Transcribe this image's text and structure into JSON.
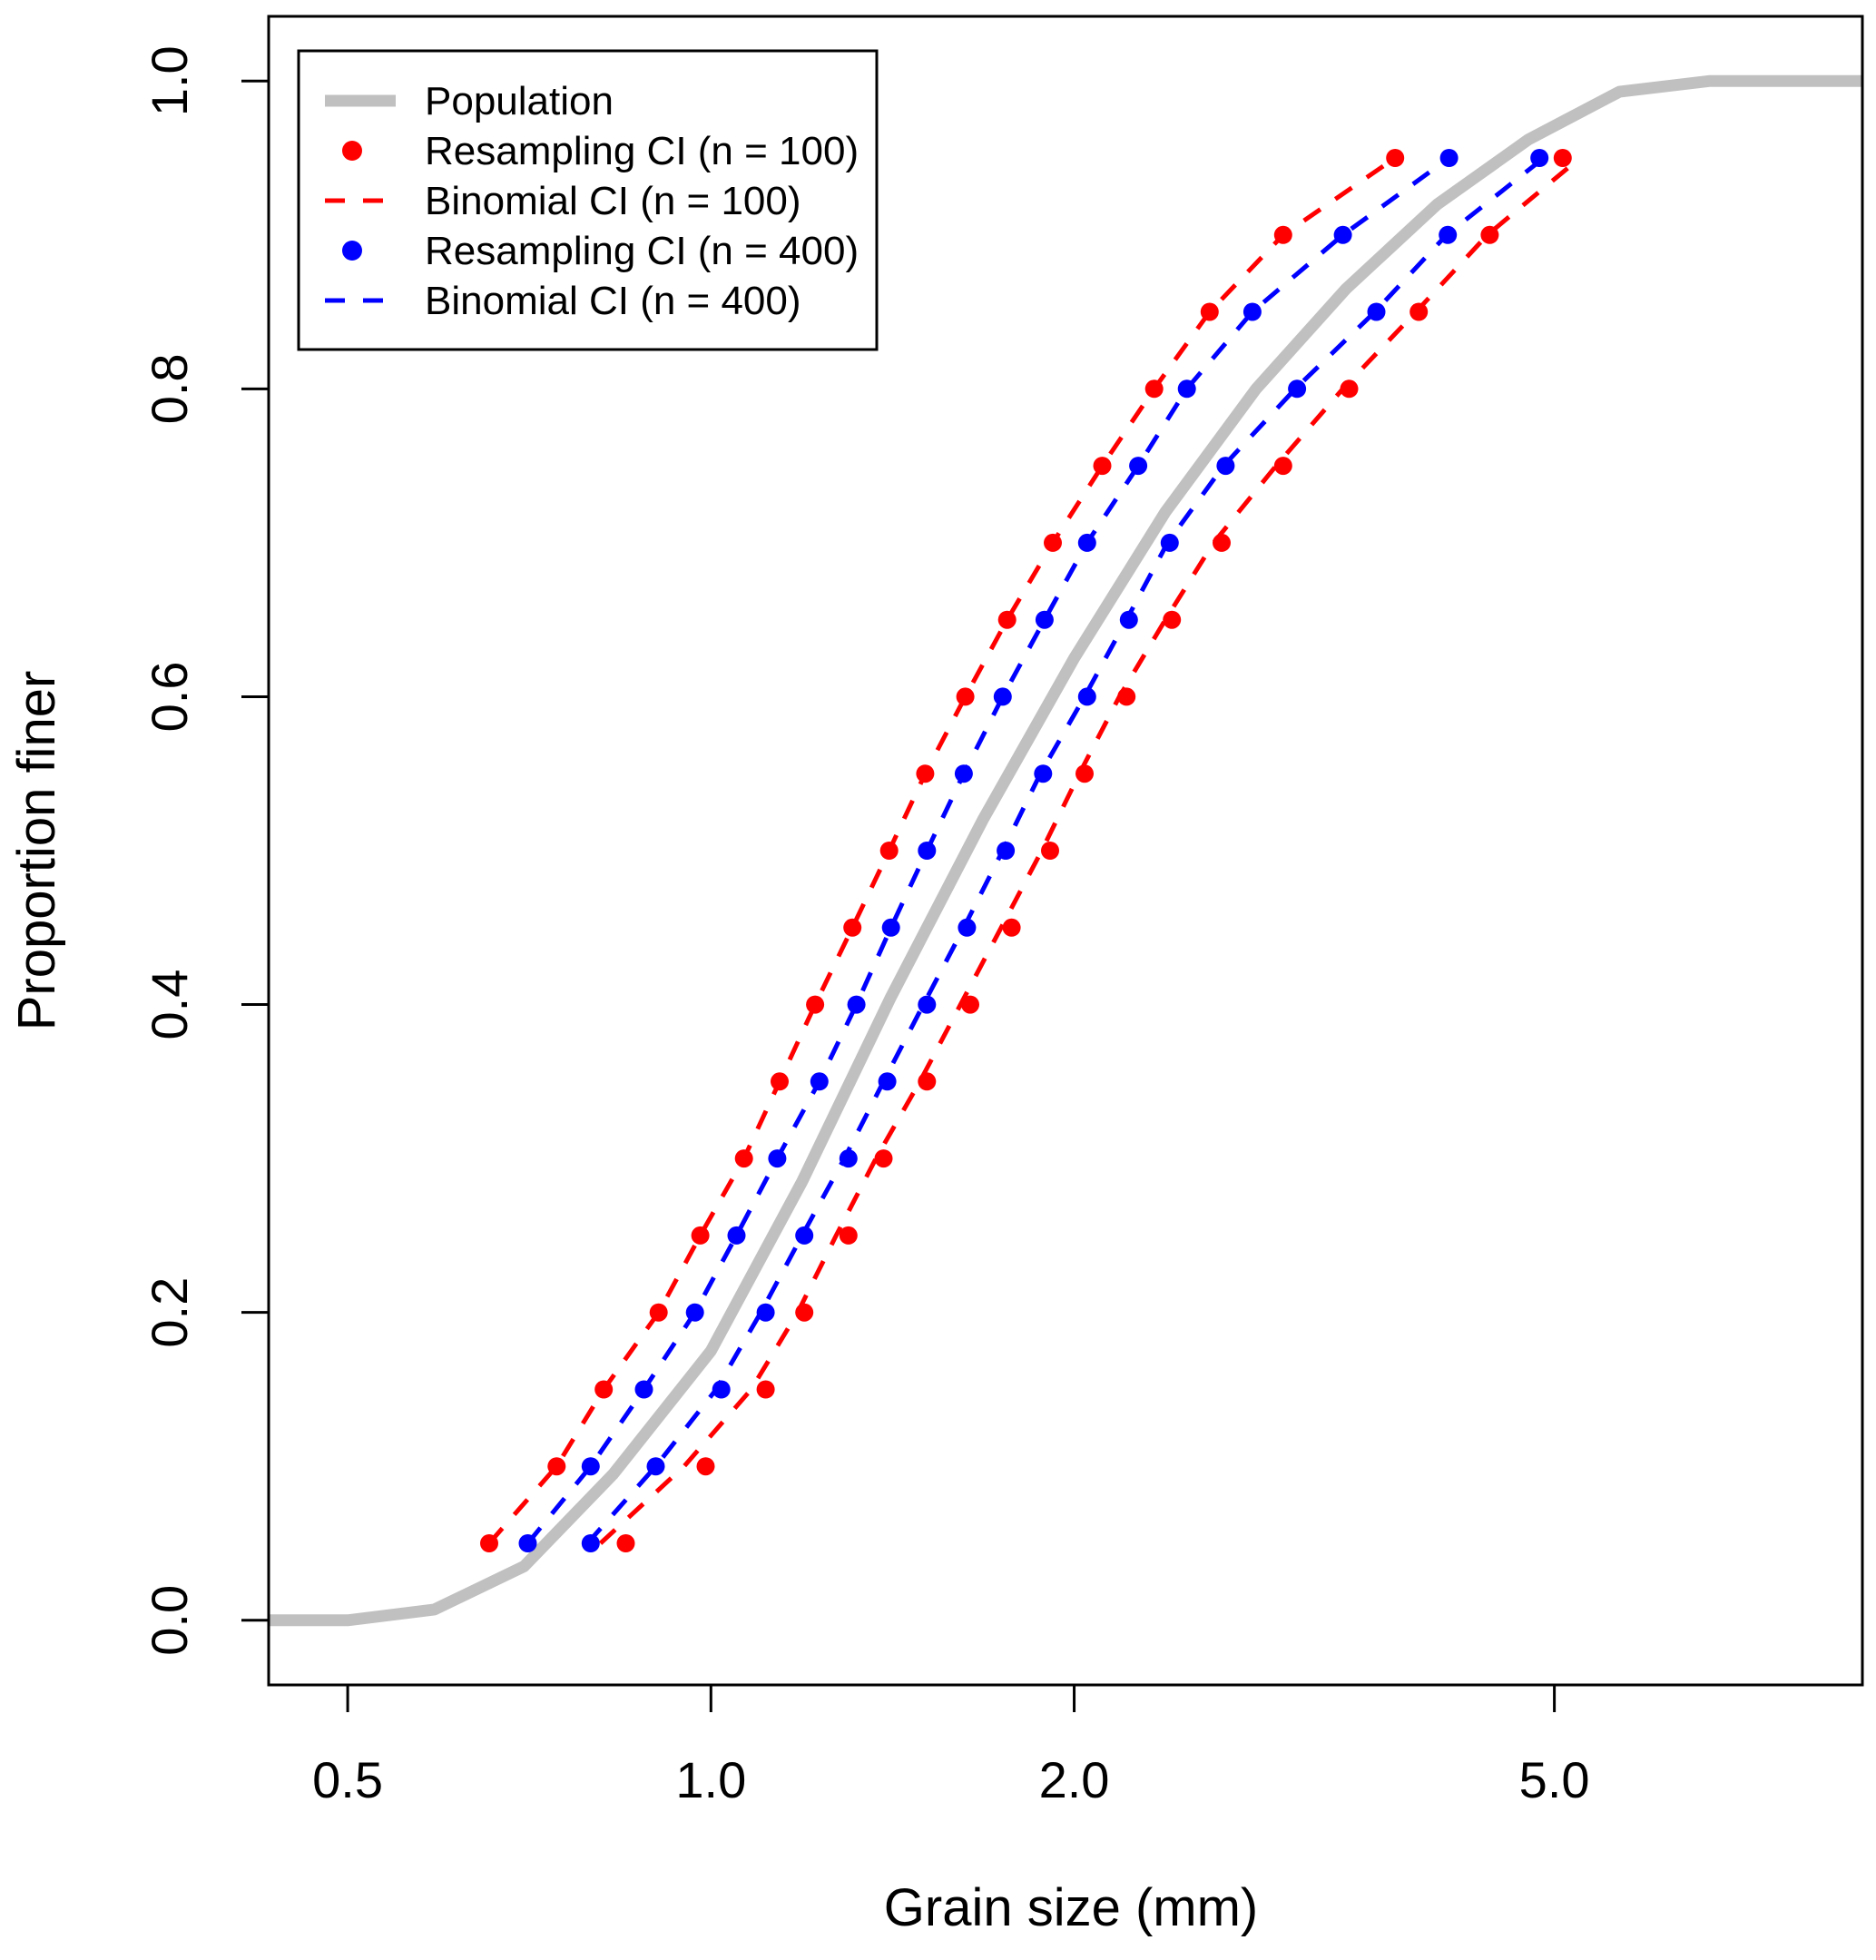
{
  "chart_data": {
    "type": "line",
    "xlabel": "Grain size (mm)",
    "ylabel": "Proportion finer",
    "x_scale": "log",
    "xlim": [
      0.43,
      9.0
    ],
    "ylim": [
      -0.042,
      1.042
    ],
    "x_ticks": [
      0.5,
      1.0,
      2.0,
      5.0
    ],
    "x_tick_labels": [
      "0.5",
      "1.0",
      "2.0",
      "5.0"
    ],
    "y_ticks": [
      0.0,
      0.2,
      0.4,
      0.6,
      0.8,
      1.0
    ],
    "y_tick_labels": [
      "0.0",
      "0.2",
      "0.4",
      "0.6",
      "0.8",
      "1.0"
    ],
    "grid": false,
    "legend_position": "top-left",
    "legend": [
      {
        "label": "Population",
        "style": "thick-line",
        "color": "#c0c0c0"
      },
      {
        "label": "Resampling CI (n = 100)",
        "style": "points",
        "color": "#ff0000"
      },
      {
        "label": "Binomial CI (n = 100)",
        "style": "dashed-line",
        "color": "#ff0000"
      },
      {
        "label": "Resampling CI (n = 400)",
        "style": "points",
        "color": "#0000ff"
      },
      {
        "label": "Binomial CI (n = 400)",
        "style": "dashed-line",
        "color": "#0000ff"
      }
    ],
    "series": [
      {
        "name": "Population",
        "kind": "line",
        "color": "#c0c0c0",
        "x": [
          0.43,
          0.5,
          0.59,
          0.7,
          0.83,
          1.0,
          1.19,
          1.41,
          1.68,
          2.0,
          2.38,
          2.83,
          3.36,
          4.0,
          4.76,
          5.66,
          6.73,
          9.0
        ],
        "y": [
          0.0,
          0.0,
          0.007,
          0.035,
          0.095,
          0.175,
          0.285,
          0.405,
          0.52,
          0.625,
          0.72,
          0.8,
          0.865,
          0.92,
          0.962,
          0.993,
          1.0,
          1.0
        ]
      },
      {
        "name": "Resampling CI (n = 100)",
        "kind": "points",
        "color": "#ff0000",
        "bound": "lower-size",
        "x": [
          0.655,
          0.745,
          0.815,
          0.905,
          0.98,
          1.065,
          1.14,
          1.22,
          1.31,
          1.405,
          1.505,
          1.625,
          1.76,
          1.92,
          2.11,
          2.33,
          2.59,
          2.98,
          3.69
        ],
        "y": [
          0.05,
          0.1,
          0.15,
          0.2,
          0.25,
          0.3,
          0.35,
          0.4,
          0.45,
          0.5,
          0.55,
          0.6,
          0.65,
          0.7,
          0.75,
          0.8,
          0.85,
          0.9,
          0.95
        ]
      },
      {
        "name": "Resampling CI (n = 100)",
        "kind": "points",
        "color": "#ff0000",
        "bound": "upper-size",
        "x": [
          0.85,
          0.99,
          1.11,
          1.195,
          1.3,
          1.39,
          1.51,
          1.64,
          1.775,
          1.91,
          2.04,
          2.21,
          2.41,
          2.65,
          2.98,
          3.38,
          3.86,
          4.42,
          5.08
        ],
        "y": [
          0.05,
          0.1,
          0.15,
          0.2,
          0.25,
          0.3,
          0.35,
          0.4,
          0.45,
          0.5,
          0.55,
          0.6,
          0.65,
          0.7,
          0.75,
          0.8,
          0.85,
          0.9,
          0.95
        ]
      },
      {
        "name": "Resampling CI (n = 400)",
        "kind": "points",
        "color": "#0000ff",
        "bound": "lower-size",
        "x": [
          0.705,
          0.795,
          0.88,
          0.97,
          1.05,
          1.135,
          1.23,
          1.32,
          1.41,
          1.51,
          1.62,
          1.745,
          1.89,
          2.05,
          2.26,
          2.48,
          2.81,
          3.34,
          4.09
        ],
        "y": [
          0.05,
          0.1,
          0.15,
          0.2,
          0.25,
          0.3,
          0.35,
          0.4,
          0.45,
          0.5,
          0.55,
          0.6,
          0.65,
          0.7,
          0.75,
          0.8,
          0.85,
          0.9,
          0.95
        ]
      },
      {
        "name": "Resampling CI (n = 400)",
        "kind": "points",
        "color": "#0000ff",
        "bound": "upper-size",
        "x": [
          0.795,
          0.9,
          1.02,
          1.11,
          1.195,
          1.3,
          1.4,
          1.51,
          1.63,
          1.755,
          1.885,
          2.05,
          2.22,
          2.4,
          2.67,
          3.06,
          3.56,
          4.08,
          4.86
        ],
        "y": [
          0.05,
          0.1,
          0.15,
          0.2,
          0.25,
          0.3,
          0.35,
          0.4,
          0.45,
          0.5,
          0.55,
          0.6,
          0.65,
          0.7,
          0.75,
          0.8,
          0.85,
          0.9,
          0.95
        ]
      },
      {
        "name": "Binomial CI (n = 100)",
        "kind": "dashed",
        "color": "#ff0000",
        "bound": "lower-size",
        "x": [
          0.655,
          0.745,
          0.815,
          0.905,
          0.98,
          1.065,
          1.14,
          1.22,
          1.31,
          1.405,
          1.505,
          1.625,
          1.76,
          1.92,
          2.11,
          2.33,
          2.59,
          2.98,
          3.69
        ],
        "y": [
          0.05,
          0.1,
          0.15,
          0.2,
          0.25,
          0.3,
          0.35,
          0.4,
          0.45,
          0.5,
          0.55,
          0.6,
          0.65,
          0.7,
          0.75,
          0.8,
          0.85,
          0.9,
          0.95
        ]
      },
      {
        "name": "Binomial CI (n = 100)",
        "kind": "dashed",
        "color": "#ff0000",
        "bound": "upper-size",
        "x": [
          0.81,
          0.95,
          1.08,
          1.18,
          1.27,
          1.37,
          1.49,
          1.61,
          1.74,
          1.88,
          2.02,
          2.18,
          2.38,
          2.61,
          2.94,
          3.34,
          3.84,
          4.4,
          5.25
        ],
        "y": [
          0.05,
          0.1,
          0.15,
          0.2,
          0.25,
          0.3,
          0.35,
          0.4,
          0.45,
          0.5,
          0.55,
          0.6,
          0.65,
          0.7,
          0.75,
          0.8,
          0.85,
          0.9,
          0.95
        ]
      },
      {
        "name": "Binomial CI (n = 400)",
        "kind": "dashed",
        "color": "#0000ff",
        "bound": "lower-size",
        "x": [
          0.705,
          0.795,
          0.88,
          0.97,
          1.05,
          1.135,
          1.23,
          1.32,
          1.41,
          1.51,
          1.62,
          1.745,
          1.89,
          2.05,
          2.26,
          2.48,
          2.81,
          3.34,
          4.09
        ],
        "y": [
          0.05,
          0.1,
          0.15,
          0.2,
          0.25,
          0.3,
          0.35,
          0.4,
          0.45,
          0.5,
          0.55,
          0.6,
          0.65,
          0.7,
          0.75,
          0.8,
          0.85,
          0.9,
          0.95
        ]
      },
      {
        "name": "Binomial CI (n = 400)",
        "kind": "dashed",
        "color": "#0000ff",
        "bound": "upper-size",
        "x": [
          0.79,
          0.9,
          1.01,
          1.1,
          1.19,
          1.29,
          1.39,
          1.5,
          1.62,
          1.745,
          1.875,
          2.04,
          2.21,
          2.39,
          2.66,
          3.05,
          3.55,
          4.07,
          4.9
        ],
        "y": [
          0.05,
          0.1,
          0.15,
          0.2,
          0.25,
          0.3,
          0.35,
          0.4,
          0.45,
          0.5,
          0.55,
          0.6,
          0.65,
          0.7,
          0.75,
          0.8,
          0.85,
          0.9,
          0.95
        ]
      }
    ]
  }
}
